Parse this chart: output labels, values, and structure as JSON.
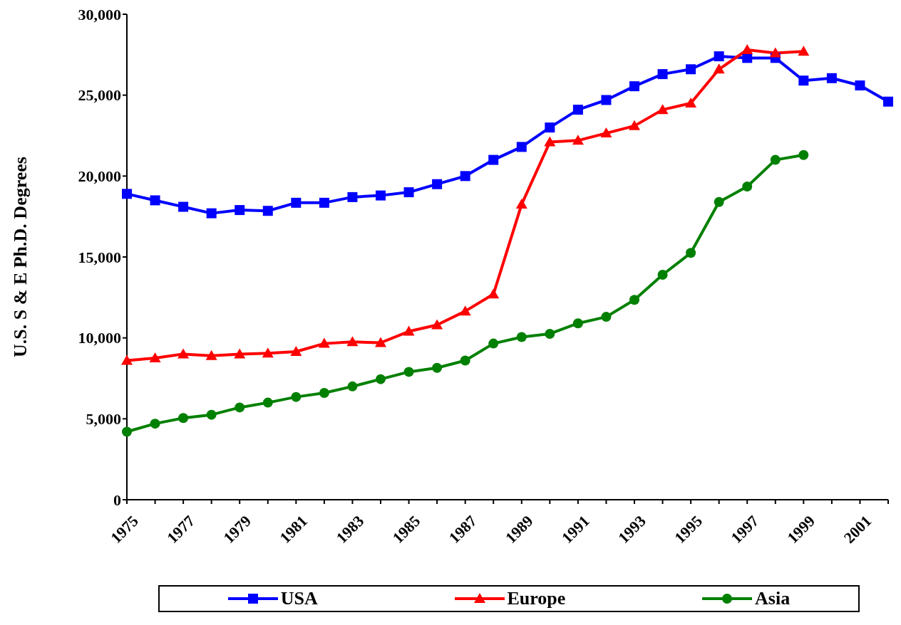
{
  "chart_data": {
    "type": "line",
    "ylabel": "U.S. S & E Ph.D. Degrees",
    "categories": [
      "1975",
      null,
      "1977",
      null,
      "1979",
      null,
      "1981",
      null,
      "1983",
      null,
      "1985",
      null,
      "1987",
      null,
      "1989",
      null,
      "1991",
      null,
      "1993",
      null,
      "1995",
      null,
      "1997",
      null,
      "1999",
      null,
      "2001",
      null
    ],
    "series": [
      {
        "name": "USA",
        "color": "#0000ff",
        "marker": "square",
        "values": [
          18900,
          18500,
          18100,
          17700,
          17900,
          17850,
          18350,
          18350,
          18700,
          18800,
          19000,
          19500,
          20000,
          21000,
          21800,
          23000,
          24100,
          24700,
          25550,
          26300,
          26600,
          27400,
          27300,
          27300,
          25900,
          26050,
          25600,
          24600
        ]
      },
      {
        "name": "Europe",
        "color": "#ff0000",
        "marker": "triangle",
        "values": [
          8600,
          8750,
          9000,
          8900,
          9000,
          9050,
          9150,
          9650,
          9750,
          9700,
          10400,
          10800,
          11650,
          12700,
          18250,
          22100,
          22200,
          22650,
          23100,
          24100,
          24500,
          26600,
          27800,
          27600,
          27700,
          null,
          null,
          null
        ]
      },
      {
        "name": "Asia",
        "color": "#008000",
        "marker": "circle",
        "values": [
          4200,
          4700,
          5050,
          5250,
          5700,
          6000,
          6350,
          6600,
          7000,
          7450,
          7900,
          8150,
          8600,
          9650,
          10050,
          10250,
          10900,
          11300,
          12350,
          13900,
          15250,
          18400,
          19350,
          21000,
          21300,
          null,
          null,
          null
        ]
      }
    ],
    "ylim": [
      0,
      30000
    ],
    "yticks": [
      0,
      {
        "value": 5000,
        "label": "5,000"
      },
      {
        "value": 10000,
        "label": "10,000"
      },
      {
        "value": 15000,
        "label": "15,000"
      },
      {
        "value": 20000,
        "label": "20,000"
      },
      {
        "value": 25000,
        "label": "25,000"
      },
      {
        "value": 30000,
        "label": "30,000"
      }
    ],
    "grid": false,
    "legend": "bottom",
    "line_style": "solid"
  }
}
